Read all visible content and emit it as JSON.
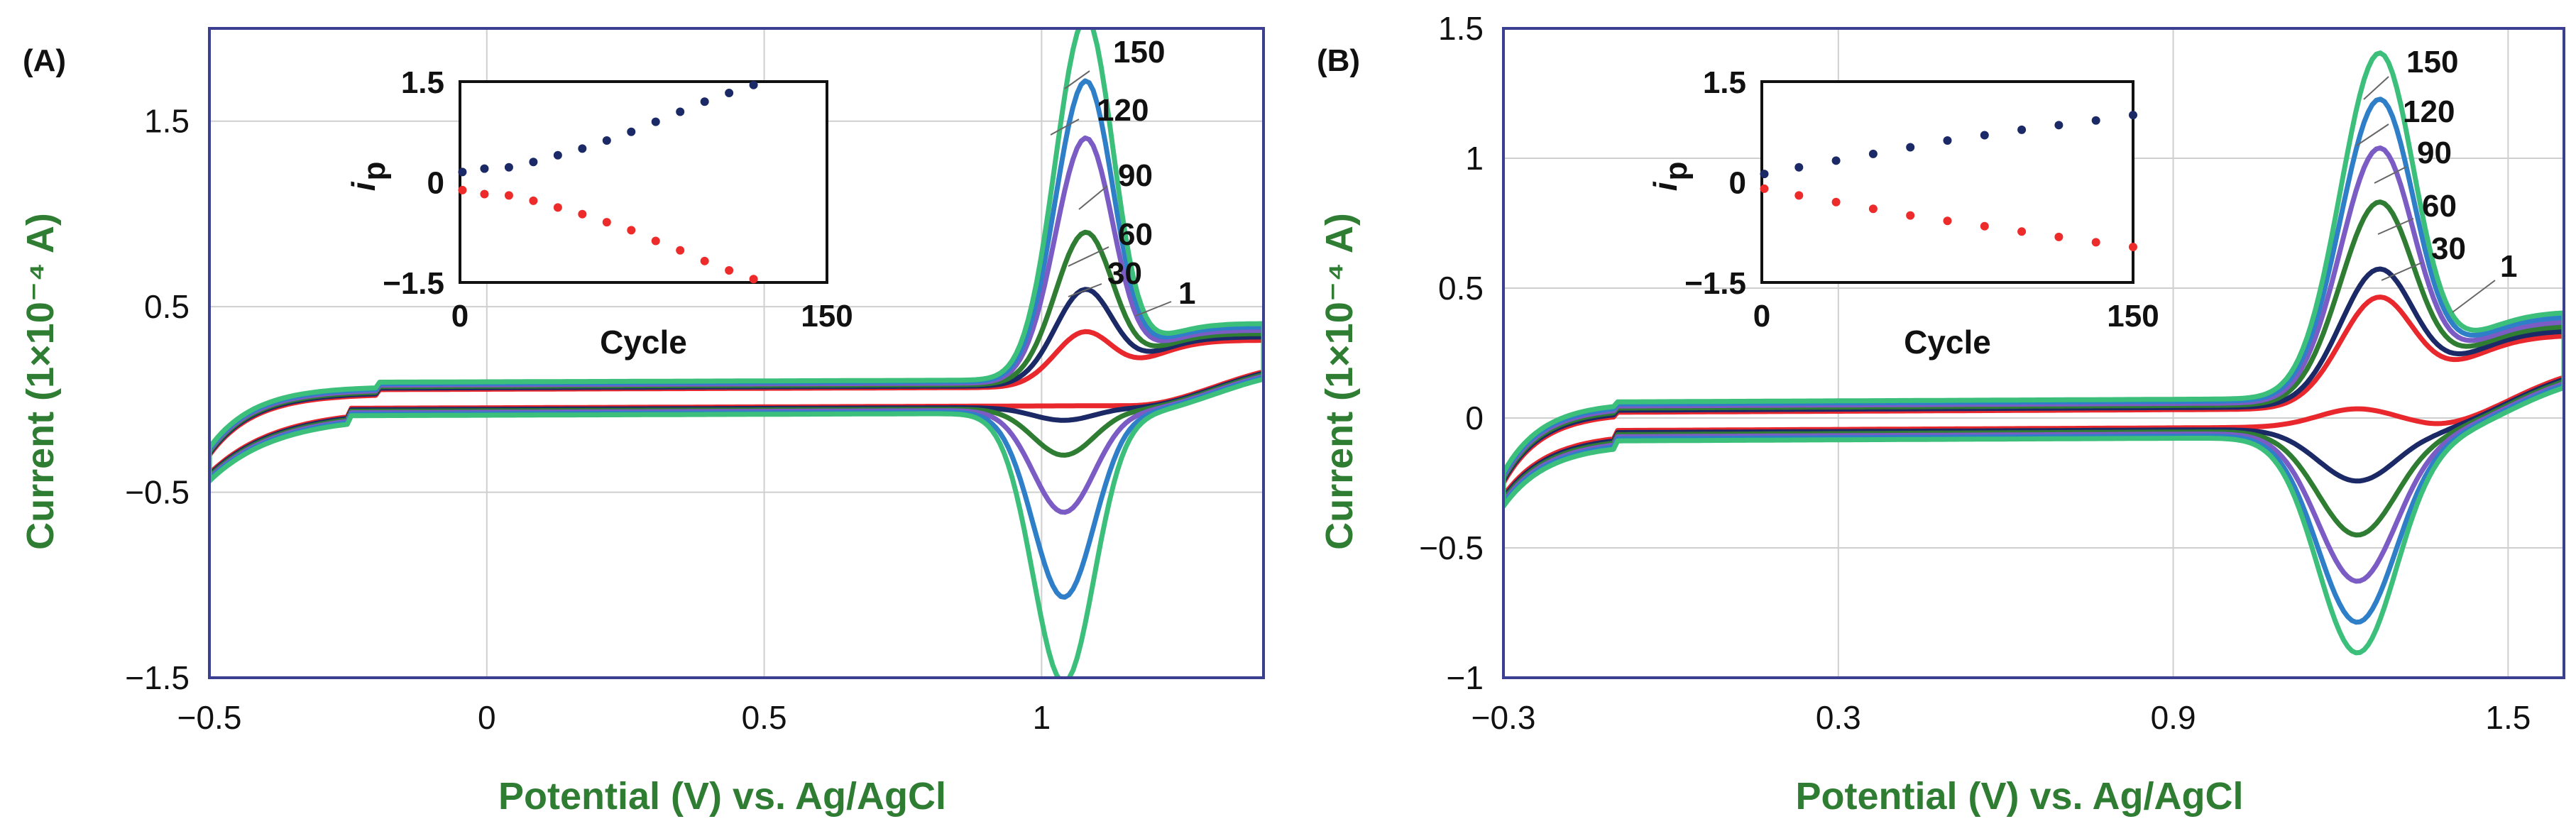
{
  "chart_data": [
    {
      "type": "line",
      "panel_label": "(A)",
      "title": "",
      "xlabel": "Potential (V) vs. Ag/AgCl",
      "ylabel": "Current (1×10⁻⁴ A)",
      "xlim": [
        -0.5,
        1.4
      ],
      "ylim": [
        -1.5,
        2.0
      ],
      "xticks": [
        -0.5,
        0,
        0.5,
        1
      ],
      "xtick_labels": [
        "−0.5",
        "0",
        "0.5",
        "1"
      ],
      "yticks": [
        -1.5,
        -0.5,
        0.5,
        1.5
      ],
      "ytick_labels": [
        "−1.5",
        "−0.5",
        "0.5",
        "1.5"
      ],
      "grid": true,
      "series": [
        {
          "name": "1",
          "color": "#e8282d",
          "peak_potential": 1.08,
          "anodic_peak": 0.35,
          "cathodic_peak": -0.05
        },
        {
          "name": "30",
          "color": "#1b2a66",
          "peak_potential": 1.08,
          "anodic_peak": 0.57,
          "cathodic_peak": -0.12
        },
        {
          "name": "60",
          "color": "#2e7d32",
          "peak_potential": 1.08,
          "anodic_peak": 0.87,
          "cathodic_peak": -0.3
        },
        {
          "name": "90",
          "color": "#7b5bc4",
          "peak_potential": 1.08,
          "anodic_peak": 1.37,
          "cathodic_peak": -0.6
        },
        {
          "name": "120",
          "color": "#2f7fc8",
          "peak_potential": 1.08,
          "anodic_peak": 1.67,
          "cathodic_peak": -1.05
        },
        {
          "name": "150",
          "color": "#3cbf7a",
          "peak_potential": 1.08,
          "anodic_peak": 2.0,
          "cathodic_peak": -1.5
        }
      ],
      "inset": {
        "ylabel": "i",
        "ylabel_sub": "p",
        "xlabel": "Cycle",
        "xlim": [
          0,
          150
        ],
        "ylim": [
          -1.5,
          1.5
        ],
        "xticks": [
          0,
          150
        ],
        "xtick_labels": [
          "0",
          "150"
        ],
        "yticks": [
          1.5,
          0,
          -1.5
        ],
        "ytick_labels": [
          "1.5",
          "0",
          "−1.5"
        ],
        "x": [
          1,
          10,
          20,
          30,
          40,
          50,
          60,
          70,
          80,
          90,
          100,
          110,
          120
        ],
        "anodic": [
          0.15,
          0.2,
          0.22,
          0.3,
          0.4,
          0.5,
          0.62,
          0.75,
          0.9,
          1.05,
          1.2,
          1.33,
          1.45
        ],
        "cathodic": [
          -0.12,
          -0.18,
          -0.2,
          -0.28,
          -0.38,
          -0.48,
          -0.6,
          -0.72,
          -0.88,
          -1.02,
          -1.18,
          -1.32,
          -1.45
        ],
        "anodic_color": "#1b2a66",
        "cathodic_color": "#ee2b2b"
      }
    },
    {
      "type": "line",
      "panel_label": "(B)",
      "title": "",
      "xlabel": "Potential (V) vs. Ag/AgCl",
      "ylabel": "Current (1×10⁻⁴ A)",
      "xlim": [
        -0.3,
        1.6
      ],
      "ylim": [
        -1.0,
        1.5
      ],
      "xticks": [
        -0.3,
        0.3,
        0.9,
        1.5
      ],
      "xtick_labels": [
        "−0.3",
        "0.3",
        "0.9",
        "1.5"
      ],
      "yticks": [
        -1,
        -0.5,
        0,
        0.5,
        1,
        1.5
      ],
      "ytick_labels": [
        "−1",
        "−0.5",
        "0",
        "0.5",
        "1",
        "1.5"
      ],
      "grid": true,
      "series": [
        {
          "name": "1",
          "color": "#e8282d",
          "peak_potential": 1.27,
          "anodic_peak": 0.45,
          "cathodic_peak": 0.02
        },
        {
          "name": "30",
          "color": "#1b2a66",
          "peak_potential": 1.27,
          "anodic_peak": 0.55,
          "cathodic_peak": -0.25
        },
        {
          "name": "60",
          "color": "#2e7d32",
          "peak_potential": 1.27,
          "anodic_peak": 0.8,
          "cathodic_peak": -0.45
        },
        {
          "name": "90",
          "color": "#7b5bc4",
          "peak_potential": 1.27,
          "anodic_peak": 1.0,
          "cathodic_peak": -0.62
        },
        {
          "name": "120",
          "color": "#2f7fc8",
          "peak_potential": 1.27,
          "anodic_peak": 1.18,
          "cathodic_peak": -0.77
        },
        {
          "name": "150",
          "color": "#3cbf7a",
          "peak_potential": 1.27,
          "anodic_peak": 1.35,
          "cathodic_peak": -0.88
        }
      ],
      "inset": {
        "ylabel": "i",
        "ylabel_sub": "p",
        "xlabel": "Cycle",
        "xlim": [
          0,
          150
        ],
        "ylim": [
          -1.5,
          1.5
        ],
        "xticks": [
          0,
          150
        ],
        "xtick_labels": [
          "0",
          "150"
        ],
        "yticks": [
          1.5,
          0,
          -1.5
        ],
        "ytick_labels": [
          "1.5",
          "0",
          "−1.5"
        ],
        "x": [
          1,
          15,
          30,
          45,
          60,
          75,
          90,
          105,
          120,
          135,
          150
        ],
        "anodic": [
          0.12,
          0.22,
          0.32,
          0.42,
          0.52,
          0.62,
          0.7,
          0.78,
          0.85,
          0.92,
          1.0
        ],
        "cathodic": [
          -0.1,
          -0.2,
          -0.3,
          -0.4,
          -0.5,
          -0.58,
          -0.66,
          -0.74,
          -0.82,
          -0.9,
          -0.97
        ],
        "anodic_color": "#1b2a66",
        "cathodic_color": "#ee2b2b"
      }
    }
  ],
  "colors": {
    "axis_label": "#2e7d32",
    "frame": "#3b3f91",
    "grid": "#cfcfcf"
  }
}
